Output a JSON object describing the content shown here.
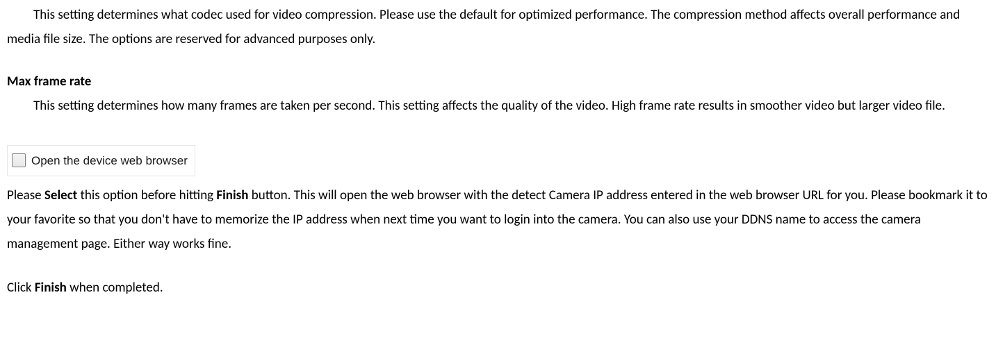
{
  "codec_paragraph": "This setting determines what codec used for video compression. Please use the default for optimized performance. The compression method affects overall performance and media file size. The options are reserved for advanced purposes only.",
  "framerate_heading": "Max frame rate",
  "framerate_paragraph": "This setting determines how many frames are taken per second. This setting affects the quality of the video. High frame rate results in smoother video but larger video file.",
  "checkbox_label": "Open the device web browser",
  "instr": {
    "p1": "Please ",
    "b1": "Select",
    "p2": " this option before hitting ",
    "b2": "Finish",
    "p3": " button. This will open the web browser with the detect Camera IP address entered in the web browser URL for you. Please bookmark it to your favorite so that you don't have to memorize the IP address when next time you want to login into the camera. You can also use your DDNS name to access the camera management page. Either way works fine."
  },
  "final": {
    "p1": "Click ",
    "b1": "Finish",
    "p2": " when completed."
  }
}
